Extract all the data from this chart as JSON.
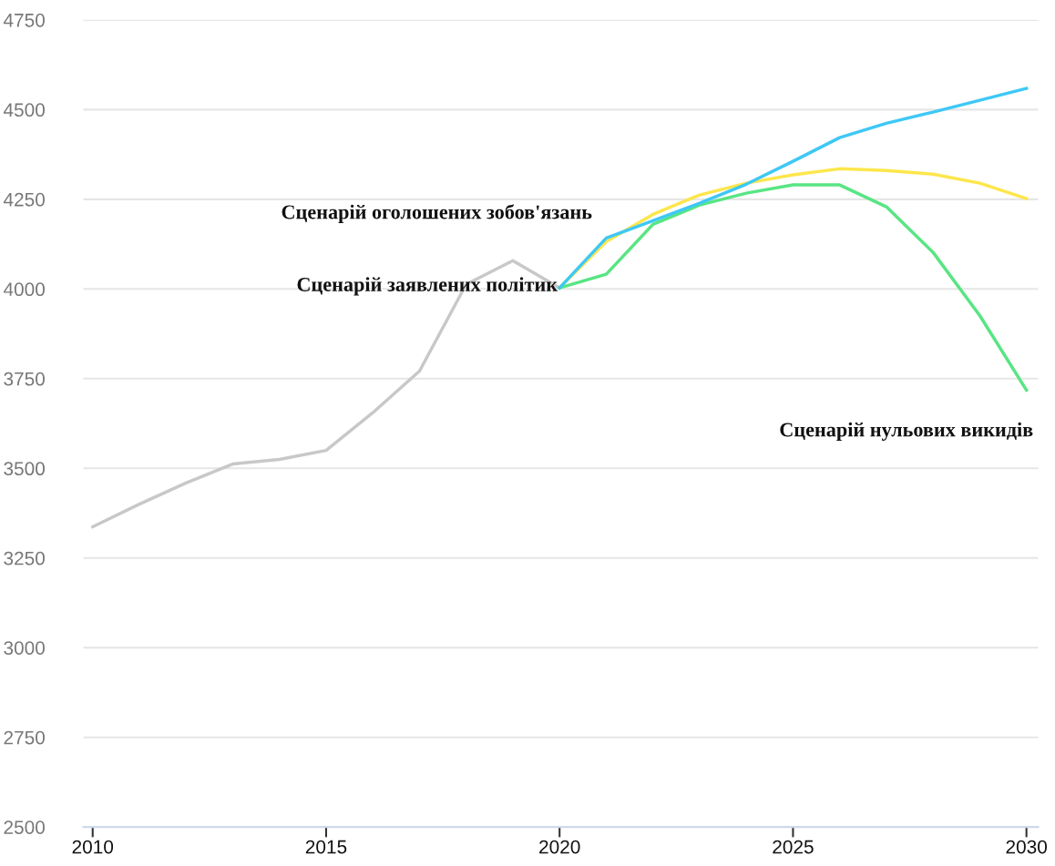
{
  "chart_data": {
    "type": "line",
    "x": [
      2010,
      2011,
      2012,
      2013,
      2014,
      2015,
      2016,
      2017,
      2018,
      2019,
      2020
    ],
    "series": [
      {
        "color": "#c8c8c8",
        "values": [
          3337,
          3400,
          3459,
          3512,
          3525,
          3550,
          3655,
          3771,
          4013,
          4079,
          4003
        ]
      },
      {
        "name": "Сценарій оголошених зобов'язань",
        "color": "#fde64b",
        "x": [
          2020,
          2021,
          2022,
          2023,
          2024,
          2025,
          2026,
          2027,
          2028,
          2029,
          2030
        ],
        "values": [
          4003,
          4132,
          4208,
          4262,
          4295,
          4318,
          4335,
          4330,
          4320,
          4295,
          4252
        ]
      },
      {
        "name": "Сценарій нульових викидів",
        "color": "#58e583",
        "x": [
          2020,
          2021,
          2022,
          2023,
          2024,
          2025,
          2026,
          2027,
          2028,
          2029,
          2030
        ],
        "values": [
          4003,
          4041,
          4180,
          4234,
          4267,
          4290,
          4290,
          4229,
          4102,
          3926,
          3718
        ]
      },
      {
        "name": "Сценарій заявлених політик",
        "color": "#3ec8f5",
        "x": [
          2020,
          2021,
          2022,
          2023,
          2024,
          2025,
          2026,
          2027,
          2028,
          2029,
          2030
        ],
        "values": [
          4003,
          4142,
          4190,
          4239,
          4292,
          4356,
          4422,
          4462,
          4493,
          4526,
          4559
        ]
      }
    ],
    "xlim": [
      2009.8,
      2030.25
    ],
    "xticks": [
      2010,
      2015,
      2020,
      2025,
      2030
    ],
    "ylim": [
      2500,
      4750
    ],
    "yticks": [
      2500,
      2750,
      3000,
      3250,
      3500,
      3750,
      4000,
      4250,
      4500,
      4750
    ],
    "grid": "y",
    "marker": "none",
    "line_style": "solid"
  }
}
